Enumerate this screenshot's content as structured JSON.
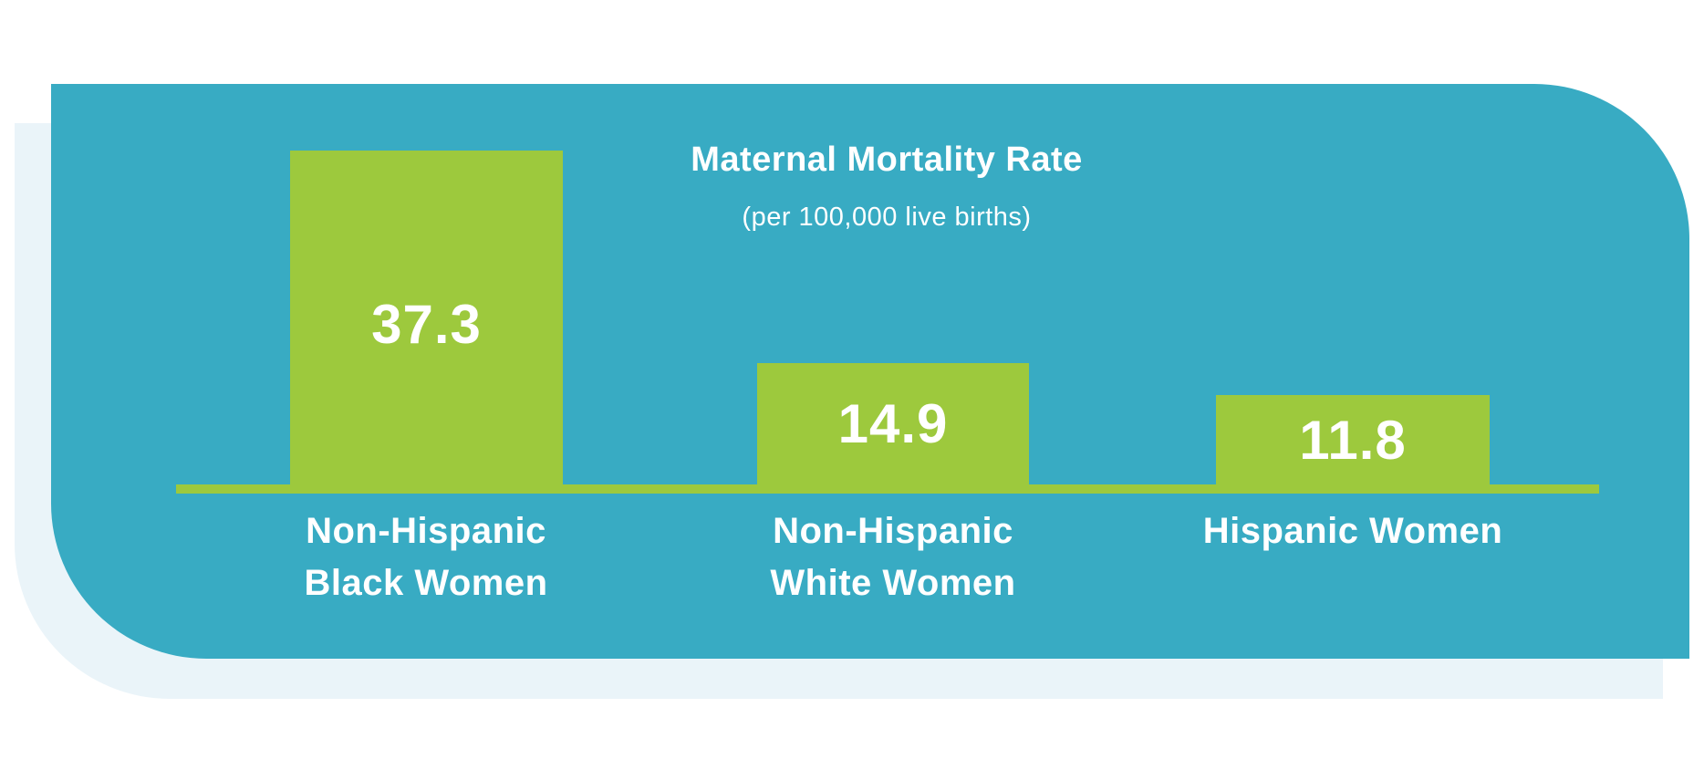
{
  "chart_data": {
    "type": "bar",
    "title": "Maternal Mortality Rate",
    "subtitle": "(per 100,000 live births)",
    "categories": [
      "Non-Hispanic Black Women",
      "Non-Hispanic White Women",
      "Hispanic Women"
    ],
    "values": [
      37.3,
      14.9,
      11.8
    ],
    "xlabel": "",
    "ylabel": "",
    "grid": false,
    "legend": false,
    "bars": [
      {
        "value": 37.3,
        "value_label": "37.3",
        "label_lines": [
          "Non-Hispanic",
          "Black Women"
        ]
      },
      {
        "value": 14.9,
        "value_label": "14.9",
        "label_lines": [
          "Non-Hispanic",
          "White Women"
        ]
      },
      {
        "value": 11.8,
        "value_label": "11.8",
        "label_lines": [
          "Hispanic Women"
        ]
      }
    ],
    "colors": {
      "bar_fill": "#9DC93D",
      "baseline": "#9DC93D",
      "card_background": "#38ABC3",
      "card_shadow": "#EAF4F9",
      "text": "#FFFFFF",
      "page_background": "#FFFFFF"
    }
  }
}
